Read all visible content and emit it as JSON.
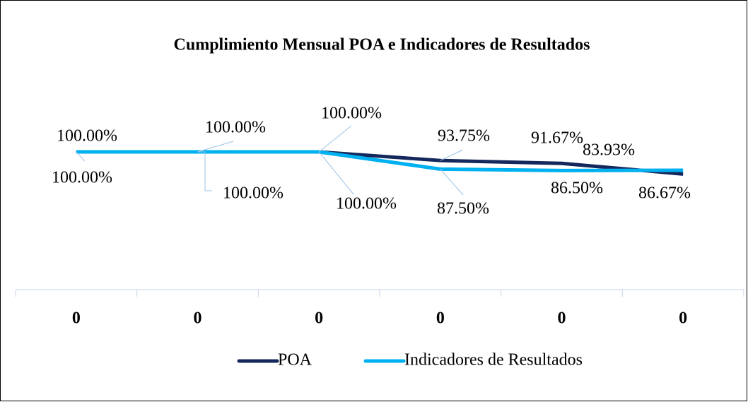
{
  "chart_data": {
    "type": "line",
    "title": "Cumplimiento Mensual  POA e Indicadores de Resultados",
    "categories": [
      "0",
      "0",
      "0",
      "0",
      "0",
      "0"
    ],
    "series": [
      {
        "name": "POA",
        "color": "#14285c",
        "values": [
          100,
          100,
          100,
          93.75,
          91.67,
          83.93
        ],
        "value_labels": [
          "100.00%",
          "100.00%",
          "100.00%",
          "93.75%",
          "91.67%",
          "83.93%"
        ]
      },
      {
        "name": "Indicadores de Resultados",
        "color": "#00b0f0",
        "values": [
          100,
          100,
          100,
          87.5,
          86.5,
          86.67
        ],
        "value_labels": [
          "100.00%",
          "100.00%",
          "100.00%",
          "87.50%",
          "86.50%",
          "86.67%"
        ]
      }
    ],
    "ylim": [
      0,
      120
    ],
    "legend": "bottom"
  }
}
